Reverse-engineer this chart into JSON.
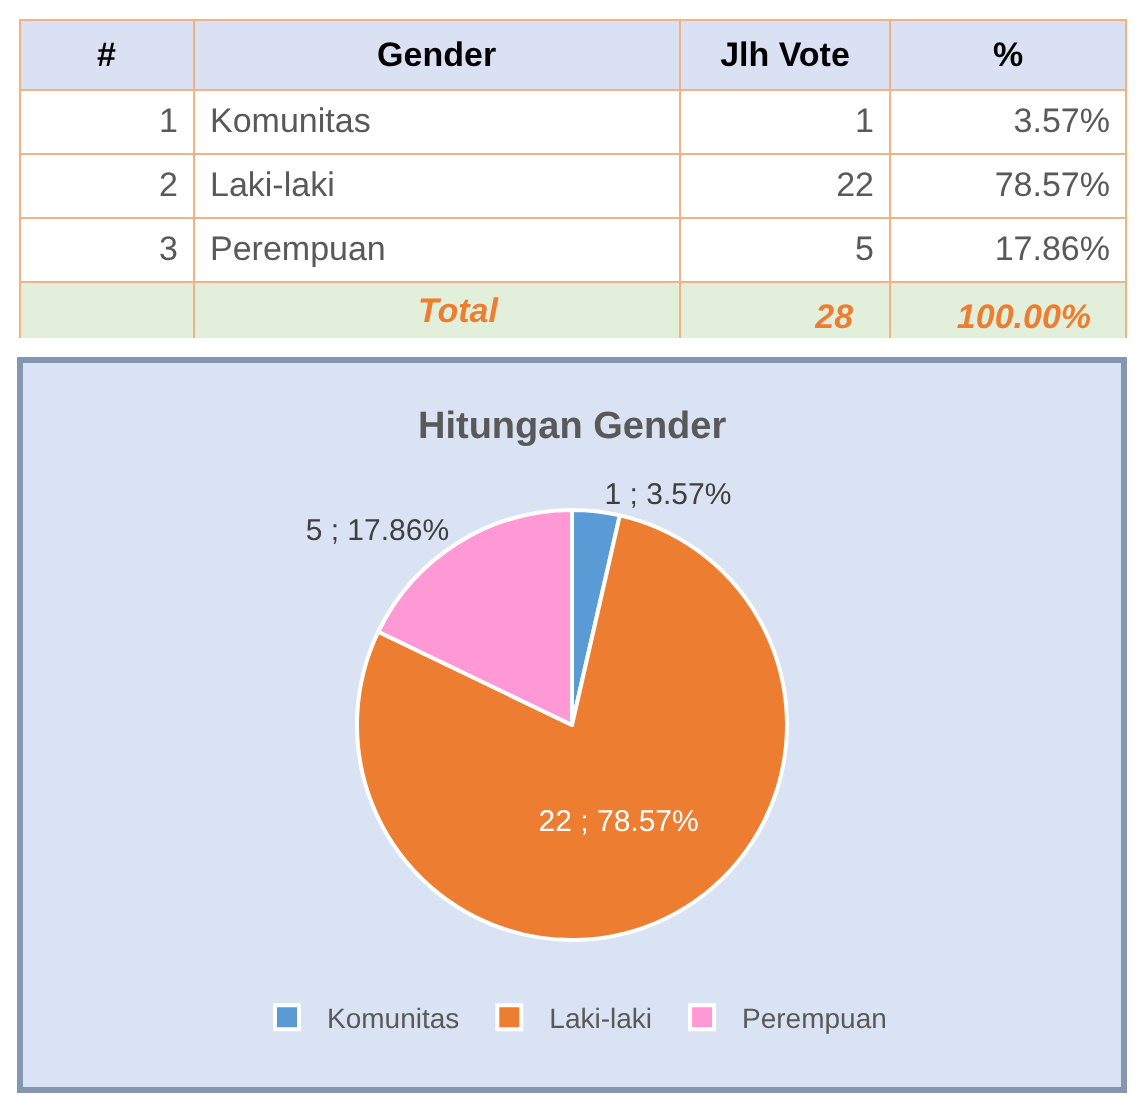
{
  "chart_data": [
    {
      "type": "other",
      "xlabel": "Gender",
      "categories": [
        "Komunitas",
        "Laki-laki",
        "Perempuan"
      ],
      "data_labels": true,
      "series": [
        {
          "name": "#",
          "values": [
            1,
            2,
            3
          ]
        },
        {
          "name": "Jlh Vote",
          "values": [
            1,
            22,
            5
          ]
        },
        {
          "name": "%",
          "values": [
            3.57,
            78.57,
            17.86
          ],
          "value_labels": [
            "3.57%",
            "78.57%",
            "17.86%"
          ]
        }
      ],
      "totals": [
        null,
        "28",
        "100.00%"
      ],
      "annotations": [
        "Total"
      ]
    },
    {
      "type": "pie",
      "title": "Hitungan Gender",
      "categories": [
        "Komunitas",
        "Laki-laki",
        "Perempuan"
      ],
      "values": [
        1,
        22,
        5
      ],
      "colors": [
        "#5b9bd5",
        "#ed7d31",
        "#ff99d6"
      ],
      "value_labels": [
        "1 ; 3.57%",
        "22 ; 78.57%",
        "5 ; 17.86%"
      ],
      "legend": "bottom"
    }
  ]
}
